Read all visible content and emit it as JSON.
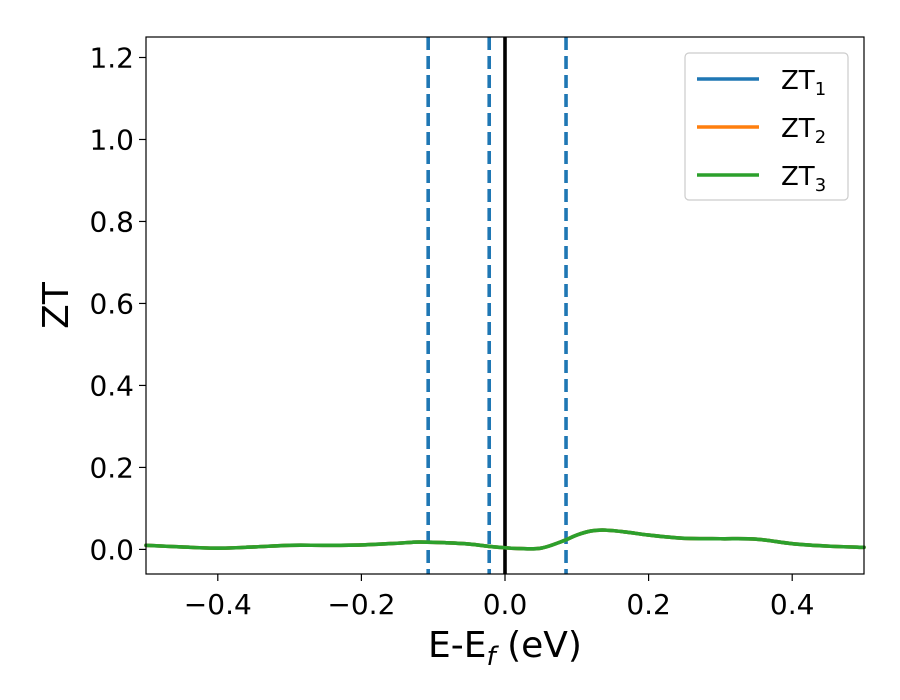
{
  "chart_data": {
    "type": "line",
    "xlabel": {
      "main": "E-E",
      "sub": "f",
      "unit": " (eV)"
    },
    "ylabel": "ZT",
    "xlim": [
      -0.5,
      0.5
    ],
    "ylim": [
      -0.06,
      1.25
    ],
    "x_ticks": [
      -0.4,
      -0.2,
      0.0,
      0.2,
      0.4
    ],
    "x_tick_labels": [
      "−0.4",
      "−0.2",
      "0.0",
      "0.2",
      "0.4"
    ],
    "y_ticks": [
      0.0,
      0.2,
      0.4,
      0.6,
      0.8,
      1.0,
      1.2
    ],
    "y_tick_labels": [
      "0.0",
      "0.2",
      "0.4",
      "0.6",
      "0.8",
      "1.0",
      "1.2"
    ],
    "legend_position": "top-right",
    "grid": false,
    "series": [
      {
        "name": "ZT1",
        "name_main": "ZT",
        "name_sub": "1",
        "color": "#1f77b4",
        "x": [
          -0.5,
          -0.45,
          -0.4,
          -0.35,
          -0.3,
          -0.25,
          -0.2,
          -0.15,
          -0.12,
          -0.08,
          -0.05,
          -0.02,
          0.0,
          0.02,
          0.05,
          0.08,
          0.1,
          0.12,
          0.14,
          0.17,
          0.2,
          0.25,
          0.3,
          0.35,
          0.4,
          0.45,
          0.5
        ],
        "y": [
          0.01,
          0.006,
          0.003,
          0.006,
          0.01,
          0.01,
          0.011,
          0.015,
          0.018,
          0.016,
          0.013,
          0.007,
          0.004,
          0.002,
          0.003,
          0.02,
          0.035,
          0.045,
          0.047,
          0.042,
          0.035,
          0.027,
          0.026,
          0.025,
          0.014,
          0.008,
          0.005
        ]
      },
      {
        "name": "ZT2",
        "name_main": "ZT",
        "name_sub": "2",
        "color": "#ff7f0e",
        "x": [
          -0.5,
          -0.45,
          -0.4,
          -0.35,
          -0.3,
          -0.25,
          -0.2,
          -0.15,
          -0.12,
          -0.08,
          -0.05,
          -0.02,
          0.0,
          0.02,
          0.05,
          0.08,
          0.1,
          0.12,
          0.14,
          0.17,
          0.2,
          0.25,
          0.3,
          0.35,
          0.4,
          0.45,
          0.5
        ],
        "y": [
          0.01,
          0.006,
          0.003,
          0.006,
          0.01,
          0.01,
          0.011,
          0.015,
          0.018,
          0.016,
          0.013,
          0.007,
          0.004,
          0.002,
          0.003,
          0.02,
          0.035,
          0.045,
          0.047,
          0.042,
          0.035,
          0.027,
          0.026,
          0.025,
          0.014,
          0.008,
          0.005
        ]
      },
      {
        "name": "ZT3",
        "name_main": "ZT",
        "name_sub": "3",
        "color": "#2ca02c",
        "x": [
          -0.5,
          -0.45,
          -0.4,
          -0.35,
          -0.3,
          -0.25,
          -0.2,
          -0.15,
          -0.12,
          -0.08,
          -0.05,
          -0.02,
          0.0,
          0.02,
          0.05,
          0.08,
          0.1,
          0.12,
          0.14,
          0.17,
          0.2,
          0.25,
          0.3,
          0.35,
          0.4,
          0.45,
          0.5
        ],
        "y": [
          0.01,
          0.006,
          0.003,
          0.006,
          0.01,
          0.01,
          0.011,
          0.015,
          0.018,
          0.016,
          0.013,
          0.007,
          0.004,
          0.002,
          0.003,
          0.02,
          0.035,
          0.045,
          0.047,
          0.042,
          0.035,
          0.027,
          0.026,
          0.025,
          0.014,
          0.008,
          0.005
        ]
      }
    ],
    "vertical_lines": [
      {
        "x": -0.107,
        "style": "dashed",
        "color": "#1f77b4"
      },
      {
        "x": -0.022,
        "style": "dashed",
        "color": "#1f77b4"
      },
      {
        "x": 0.085,
        "style": "dashed",
        "color": "#1f77b4"
      },
      {
        "x": 0.0,
        "style": "solid",
        "color": "#000000"
      }
    ]
  }
}
